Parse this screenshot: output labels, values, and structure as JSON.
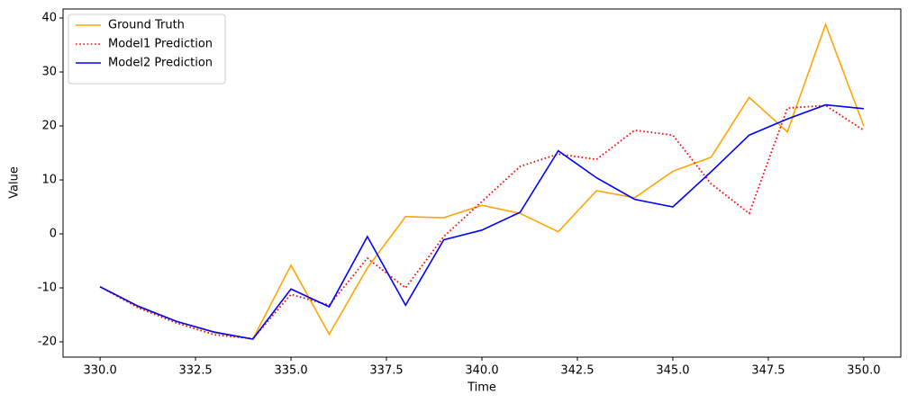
{
  "chart_data": {
    "type": "line",
    "x_label": "Time",
    "y_label": "Value",
    "x": [
      330,
      331,
      332,
      333,
      334,
      335,
      336,
      337,
      338,
      339,
      340,
      341,
      342,
      343,
      344,
      345,
      346,
      347,
      348,
      349,
      350
    ],
    "series": [
      {
        "name": "Ground Truth",
        "color": "#ffa500",
        "style": "solid",
        "values": [
          -9.8,
          -13.5,
          -16.2,
          -18.3,
          -19.5,
          -5.8,
          -18.6,
          -6.3,
          3.2,
          3.0,
          5.3,
          3.8,
          0.4,
          8.0,
          6.7,
          11.6,
          14.2,
          25.3,
          18.9,
          38.8,
          20.0
        ]
      },
      {
        "name": "Model1 Prediction",
        "color": "#ff0000",
        "style": "dotted",
        "values": [
          -9.8,
          -13.7,
          -16.5,
          -18.7,
          -19.4,
          -11.2,
          -13.2,
          -4.5,
          -10.0,
          -0.5,
          6.0,
          12.5,
          14.8,
          13.8,
          19.2,
          18.3,
          9.3,
          3.8,
          23.3,
          23.8,
          19.2
        ]
      },
      {
        "name": "Model2 Prediction",
        "color": "#0000ff",
        "style": "solid",
        "values": [
          -9.8,
          -13.4,
          -16.2,
          -18.2,
          -19.5,
          -10.2,
          -13.5,
          -0.5,
          -13.2,
          -1.1,
          0.7,
          4.0,
          15.4,
          10.4,
          6.4,
          5.0,
          11.5,
          18.3,
          21.3,
          23.9,
          23.2
        ]
      }
    ],
    "xlim": [
      329.03,
      350.97
    ],
    "ylim": [
      -22.83,
      41.67
    ],
    "xticks": [
      {
        "value": 330,
        "label": "330.0"
      },
      {
        "value": 332.5,
        "label": "332.5"
      },
      {
        "value": 335,
        "label": "335.0"
      },
      {
        "value": 337.5,
        "label": "337.5"
      },
      {
        "value": 340,
        "label": "340.0"
      },
      {
        "value": 342.5,
        "label": "342.5"
      },
      {
        "value": 345,
        "label": "345.0"
      },
      {
        "value": 347.5,
        "label": "347.5"
      },
      {
        "value": 350,
        "label": "350.0"
      }
    ],
    "yticks": [
      -20,
      -10,
      0,
      10,
      20,
      30,
      40
    ],
    "grid": false,
    "legend_position": "upper-left"
  }
}
